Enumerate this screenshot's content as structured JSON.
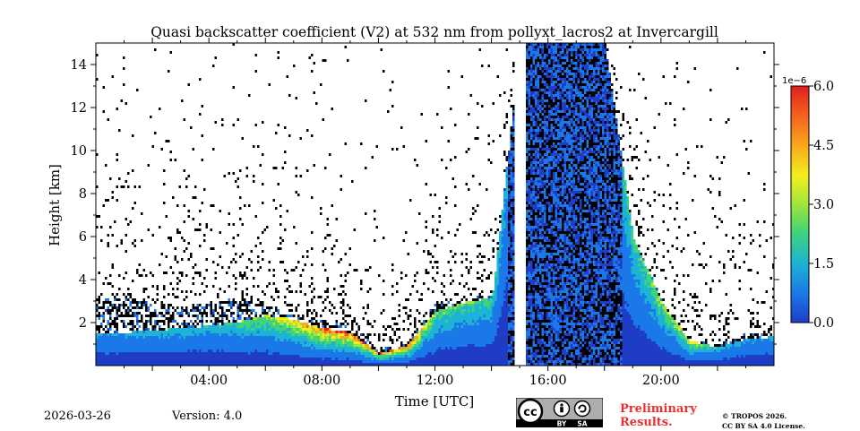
{
  "chart_data": {
    "type": "heatmap",
    "title": "Quasi backscatter coefficient (V2) at 532 nm from pollyxt_lacros2 at Invercargill",
    "xlabel": "Time [UTC]",
    "ylabel": "Height [km]",
    "x_unit": "hours UTC",
    "xlim": [
      0,
      24
    ],
    "ylim": [
      0,
      15
    ],
    "x_ticks": [
      4,
      8,
      12,
      16,
      20
    ],
    "x_tick_labels": [
      "04:00",
      "08:00",
      "12:00",
      "16:00",
      "20:00"
    ],
    "y_ticks": [
      2,
      4,
      6,
      8,
      10,
      12,
      14
    ],
    "y_tick_labels": [
      "2",
      "4",
      "6",
      "8",
      "10",
      "12",
      "14"
    ],
    "colorbar": {
      "min": 0.0,
      "max": 6.0,
      "exponent_label": "1e−6",
      "ticks": [
        0.0,
        1.5,
        3.0,
        4.5,
        6.0
      ],
      "tick_labels": [
        "0.0",
        "1.5",
        "3.0",
        "4.5",
        "6.0"
      ],
      "colormap": [
        "#1f3cc7",
        "#1a78e8",
        "#1cb3d4",
        "#3fd37a",
        "#9ee63a",
        "#f2ef1f",
        "#f9a71c",
        "#f55e1e",
        "#e01f1f"
      ]
    },
    "data_gaps_hours": [
      [
        14.8,
        15.0
      ],
      [
        15.05,
        15.15
      ]
    ],
    "profile": {
      "hours": [
        0,
        1,
        2,
        3,
        4,
        5,
        6,
        7,
        8,
        9,
        10,
        11,
        12,
        13,
        14,
        15,
        16,
        17,
        18,
        19,
        20,
        21,
        22,
        23,
        24
      ],
      "boundary_layer_km": [
        1.6,
        1.6,
        1.7,
        1.8,
        1.9,
        2.1,
        2.4,
        2.2,
        1.8,
        1.6,
        0.6,
        1.0,
        2.6,
        3.0,
        3.2,
        15,
        15,
        15,
        15,
        6.0,
        3.0,
        1.2,
        0.9,
        1.3,
        1.4
      ],
      "aerosol_top_km": [
        3.2,
        3.2,
        3.0,
        2.8,
        3.0,
        3.2,
        2.8,
        2.4,
        2.2,
        2.0,
        0.8,
        1.2,
        3.0,
        3.2,
        3.4,
        15,
        15,
        15,
        15,
        6.0,
        3.2,
        1.4,
        1.0,
        1.6,
        1.6
      ],
      "peak_value_1e-6": [
        1.2,
        1.2,
        1.3,
        1.4,
        1.5,
        2.0,
        2.8,
        4.0,
        5.2,
        5.5,
        4.5,
        5.0,
        2.5,
        2.2,
        2.0,
        0.4,
        0.4,
        0.5,
        1.5,
        2.0,
        2.8,
        3.5,
        1.5,
        1.2,
        1.2
      ]
    }
  },
  "footer": {
    "date": "2026-03-26",
    "version": "Version: 4.0",
    "preliminary_line1": "Preliminary",
    "preliminary_line2": "Results.",
    "copyright_line1": "© TROPOS 2026.",
    "copyright_line2": "CC BY SA 4.0 License.",
    "license_badge_cc": "cc",
    "license_badge_by": "BY",
    "license_badge_sa": "SA"
  },
  "colors": {
    "preliminary": "#e8312f",
    "badge_bg": "#abaeab",
    "badge_dark": "#000000"
  }
}
